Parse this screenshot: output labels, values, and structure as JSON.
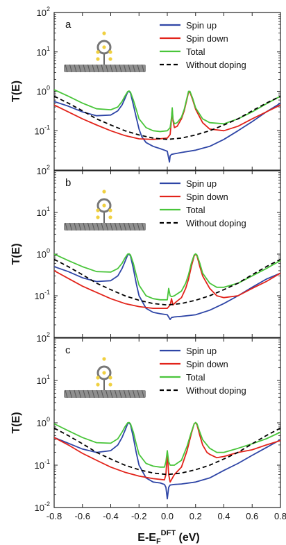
{
  "figure": {
    "xlabel_main": "E-E",
    "xlabel_sub": "F",
    "xlabel_sup": "DFT",
    "xlabel_unit": " (eV)",
    "ylabel": "T(E)",
    "x_ticks": [
      "-0.8",
      "-0.6",
      "-0.4",
      "-0.2",
      "0.0",
      "0.2",
      "0.4",
      "0.6",
      "0.8"
    ],
    "y_tick_base": "10",
    "y_tick_exponents": [
      "2",
      "1",
      "0",
      "-1",
      "-2"
    ]
  },
  "colors": {
    "spin_up": "#2e45a6",
    "spin_down": "#e2231a",
    "total": "#49c53a",
    "without_doping": "#000000"
  },
  "chart_data": [
    {
      "type": "line",
      "panel": "a",
      "xlim": [
        -0.8,
        0.8
      ],
      "ylim": [
        0.01,
        100
      ],
      "yscale": "log",
      "legend_position": "top-right",
      "legend": [
        "Spin up",
        "Spin down",
        "Total",
        "Without doping"
      ],
      "series": [
        {
          "name": "Spin up",
          "color": "#2e45a6",
          "x": [
            -0.8,
            -0.7,
            -0.6,
            -0.5,
            -0.4,
            -0.35,
            -0.32,
            -0.3,
            -0.28,
            -0.27,
            -0.26,
            -0.24,
            -0.22,
            -0.2,
            -0.18,
            -0.15,
            -0.1,
            -0.05,
            -0.02,
            0.0,
            0.01,
            0.015,
            0.02,
            0.03,
            0.05,
            0.1,
            0.2,
            0.3,
            0.4,
            0.5,
            0.6,
            0.7,
            0.8
          ],
          "y": [
            0.55,
            0.42,
            0.3,
            0.24,
            0.25,
            0.32,
            0.45,
            0.65,
            0.95,
            1.0,
            0.9,
            0.45,
            0.22,
            0.11,
            0.07,
            0.05,
            0.04,
            0.035,
            0.032,
            0.03,
            0.02,
            0.016,
            0.023,
            0.025,
            0.026,
            0.028,
            0.032,
            0.04,
            0.06,
            0.1,
            0.17,
            0.3,
            0.5
          ]
        },
        {
          "name": "Spin down",
          "color": "#e2231a",
          "x": [
            -0.8,
            -0.7,
            -0.6,
            -0.5,
            -0.4,
            -0.3,
            -0.2,
            -0.1,
            0.0,
            0.02,
            0.03,
            0.035,
            0.04,
            0.05,
            0.07,
            0.1,
            0.12,
            0.14,
            0.15,
            0.16,
            0.18,
            0.2,
            0.25,
            0.3,
            0.4,
            0.5,
            0.6,
            0.7,
            0.8
          ],
          "y": [
            0.45,
            0.3,
            0.2,
            0.14,
            0.1,
            0.075,
            0.062,
            0.06,
            0.065,
            0.08,
            0.2,
            0.35,
            0.18,
            0.12,
            0.13,
            0.2,
            0.32,
            0.65,
            0.95,
            0.95,
            0.6,
            0.35,
            0.16,
            0.11,
            0.1,
            0.13,
            0.2,
            0.3,
            0.45
          ]
        },
        {
          "name": "Total",
          "color": "#49c53a",
          "x": [
            -0.8,
            -0.7,
            -0.6,
            -0.5,
            -0.4,
            -0.35,
            -0.32,
            -0.3,
            -0.28,
            -0.27,
            -0.26,
            -0.24,
            -0.22,
            -0.2,
            -0.15,
            -0.1,
            -0.05,
            0.0,
            0.02,
            0.03,
            0.035,
            0.04,
            0.05,
            0.07,
            0.1,
            0.12,
            0.14,
            0.15,
            0.16,
            0.18,
            0.2,
            0.25,
            0.3,
            0.4,
            0.5,
            0.6,
            0.7,
            0.8
          ],
          "y": [
            1.1,
            0.75,
            0.5,
            0.36,
            0.34,
            0.4,
            0.55,
            0.75,
            0.98,
            1.02,
            0.95,
            0.6,
            0.35,
            0.2,
            0.12,
            0.1,
            0.095,
            0.1,
            0.12,
            0.22,
            0.38,
            0.2,
            0.15,
            0.16,
            0.22,
            0.35,
            0.7,
            1.0,
            1.0,
            0.65,
            0.38,
            0.2,
            0.16,
            0.15,
            0.2,
            0.3,
            0.48,
            0.75
          ]
        },
        {
          "name": "Without doping",
          "color": "#000000",
          "dashed": true,
          "x": [
            -0.8,
            -0.7,
            -0.6,
            -0.5,
            -0.4,
            -0.3,
            -0.2,
            -0.1,
            0.0,
            0.1,
            0.2,
            0.3,
            0.4,
            0.5,
            0.6,
            0.7,
            0.8
          ],
          "y": [
            0.75,
            0.5,
            0.32,
            0.2,
            0.14,
            0.1,
            0.078,
            0.065,
            0.06,
            0.065,
            0.078,
            0.1,
            0.14,
            0.2,
            0.32,
            0.5,
            0.75
          ]
        }
      ]
    },
    {
      "type": "line",
      "panel": "b",
      "xlim": [
        -0.8,
        0.8
      ],
      "ylim": [
        0.01,
        100
      ],
      "yscale": "log",
      "legend_position": "top-right",
      "legend": [
        "Spin up",
        "Spin down",
        "Total",
        "Without doping"
      ],
      "series": [
        {
          "name": "Spin up",
          "color": "#2e45a6",
          "x": [
            -0.8,
            -0.7,
            -0.6,
            -0.5,
            -0.4,
            -0.35,
            -0.32,
            -0.3,
            -0.28,
            -0.27,
            -0.26,
            -0.24,
            -0.22,
            -0.2,
            -0.15,
            -0.1,
            -0.05,
            0.0,
            0.02,
            0.03,
            0.05,
            0.1,
            0.2,
            0.3,
            0.4,
            0.5,
            0.6,
            0.7,
            0.8
          ],
          "y": [
            0.5,
            0.38,
            0.27,
            0.22,
            0.23,
            0.3,
            0.45,
            0.65,
            0.95,
            1.0,
            0.9,
            0.45,
            0.2,
            0.1,
            0.05,
            0.04,
            0.037,
            0.035,
            0.027,
            0.03,
            0.031,
            0.032,
            0.035,
            0.045,
            0.065,
            0.1,
            0.16,
            0.25,
            0.35
          ]
        },
        {
          "name": "Spin down",
          "color": "#e2231a",
          "x": [
            -0.8,
            -0.7,
            -0.6,
            -0.5,
            -0.4,
            -0.3,
            -0.2,
            -0.1,
            0.0,
            0.02,
            0.03,
            0.04,
            0.06,
            0.1,
            0.13,
            0.15,
            0.17,
            0.19,
            0.2,
            0.21,
            0.23,
            0.25,
            0.3,
            0.35,
            0.4,
            0.5,
            0.6,
            0.7,
            0.8
          ],
          "y": [
            0.4,
            0.26,
            0.17,
            0.12,
            0.085,
            0.065,
            0.055,
            0.05,
            0.05,
            0.06,
            0.085,
            0.06,
            0.07,
            0.09,
            0.15,
            0.25,
            0.5,
            0.9,
            1.0,
            0.9,
            0.5,
            0.3,
            0.15,
            0.1,
            0.09,
            0.1,
            0.15,
            0.22,
            0.35
          ]
        },
        {
          "name": "Total",
          "color": "#49c53a",
          "x": [
            -0.8,
            -0.7,
            -0.6,
            -0.5,
            -0.4,
            -0.35,
            -0.32,
            -0.3,
            -0.28,
            -0.27,
            -0.26,
            -0.24,
            -0.22,
            -0.2,
            -0.15,
            -0.1,
            -0.05,
            0.0,
            0.01,
            0.02,
            0.03,
            0.05,
            0.1,
            0.13,
            0.15,
            0.17,
            0.19,
            0.2,
            0.21,
            0.23,
            0.25,
            0.3,
            0.35,
            0.4,
            0.5,
            0.6,
            0.7,
            0.8
          ],
          "y": [
            1.0,
            0.7,
            0.5,
            0.38,
            0.37,
            0.45,
            0.6,
            0.8,
            1.0,
            1.02,
            0.95,
            0.6,
            0.32,
            0.18,
            0.1,
            0.085,
            0.08,
            0.08,
            0.15,
            0.1,
            0.095,
            0.1,
            0.13,
            0.2,
            0.32,
            0.6,
            0.95,
            1.02,
            0.95,
            0.6,
            0.35,
            0.2,
            0.16,
            0.16,
            0.2,
            0.3,
            0.45,
            0.7
          ]
        },
        {
          "name": "Without doping",
          "color": "#000000",
          "dashed": true,
          "x": [
            -0.8,
            -0.7,
            -0.6,
            -0.5,
            -0.4,
            -0.3,
            -0.2,
            -0.1,
            0.0,
            0.1,
            0.2,
            0.3,
            0.4,
            0.5,
            0.6,
            0.7,
            0.8
          ],
          "y": [
            0.75,
            0.5,
            0.32,
            0.2,
            0.14,
            0.1,
            0.078,
            0.065,
            0.06,
            0.065,
            0.078,
            0.1,
            0.14,
            0.2,
            0.32,
            0.5,
            0.75
          ]
        }
      ]
    },
    {
      "type": "line",
      "panel": "c",
      "xlim": [
        -0.8,
        0.8
      ],
      "ylim": [
        0.01,
        100
      ],
      "yscale": "log",
      "legend_position": "top-right",
      "legend": [
        "Spin up",
        "Spin down",
        "Total",
        "Without doping"
      ],
      "series": [
        {
          "name": "Spin up",
          "color": "#2e45a6",
          "x": [
            -0.8,
            -0.7,
            -0.6,
            -0.5,
            -0.4,
            -0.35,
            -0.32,
            -0.3,
            -0.28,
            -0.27,
            -0.26,
            -0.24,
            -0.22,
            -0.2,
            -0.15,
            -0.1,
            -0.05,
            -0.02,
            -0.01,
            0.0,
            0.01,
            0.02,
            0.05,
            0.1,
            0.2,
            0.3,
            0.4,
            0.5,
            0.6,
            0.7,
            0.8
          ],
          "y": [
            0.45,
            0.33,
            0.24,
            0.2,
            0.22,
            0.3,
            0.45,
            0.65,
            0.95,
            1.0,
            0.9,
            0.45,
            0.2,
            0.1,
            0.05,
            0.04,
            0.038,
            0.035,
            0.03,
            0.016,
            0.03,
            0.034,
            0.035,
            0.036,
            0.04,
            0.05,
            0.075,
            0.11,
            0.17,
            0.26,
            0.4
          ]
        },
        {
          "name": "Spin down",
          "color": "#e2231a",
          "x": [
            -0.8,
            -0.7,
            -0.6,
            -0.5,
            -0.4,
            -0.3,
            -0.2,
            -0.1,
            -0.02,
            -0.01,
            0.0,
            0.01,
            0.02,
            0.05,
            0.1,
            0.14,
            0.17,
            0.19,
            0.2,
            0.21,
            0.23,
            0.25,
            0.28,
            0.3,
            0.35,
            0.4,
            0.5,
            0.6,
            0.7,
            0.8
          ],
          "y": [
            0.45,
            0.3,
            0.19,
            0.13,
            0.09,
            0.068,
            0.055,
            0.048,
            0.045,
            0.06,
            0.2,
            0.06,
            0.04,
            0.06,
            0.09,
            0.22,
            0.55,
            0.95,
            1.0,
            0.9,
            0.5,
            0.3,
            0.2,
            0.18,
            0.15,
            0.16,
            0.2,
            0.23,
            0.3,
            0.38
          ]
        },
        {
          "name": "Total",
          "color": "#49c53a",
          "x": [
            -0.8,
            -0.7,
            -0.6,
            -0.5,
            -0.4,
            -0.35,
            -0.32,
            -0.3,
            -0.28,
            -0.27,
            -0.26,
            -0.24,
            -0.22,
            -0.2,
            -0.15,
            -0.1,
            -0.05,
            -0.02,
            -0.01,
            0.0,
            0.01,
            0.02,
            0.05,
            0.1,
            0.14,
            0.17,
            0.19,
            0.2,
            0.21,
            0.23,
            0.25,
            0.3,
            0.35,
            0.4,
            0.5,
            0.6,
            0.7,
            0.8
          ],
          "y": [
            0.95,
            0.65,
            0.45,
            0.34,
            0.33,
            0.42,
            0.6,
            0.8,
            1.0,
            1.02,
            0.95,
            0.6,
            0.32,
            0.18,
            0.11,
            0.095,
            0.09,
            0.09,
            0.12,
            0.22,
            0.12,
            0.1,
            0.1,
            0.13,
            0.28,
            0.6,
            0.95,
            1.02,
            0.95,
            0.6,
            0.4,
            0.25,
            0.2,
            0.2,
            0.25,
            0.32,
            0.42,
            0.6
          ]
        },
        {
          "name": "Without doping",
          "color": "#000000",
          "dashed": true,
          "x": [
            -0.8,
            -0.7,
            -0.6,
            -0.5,
            -0.4,
            -0.3,
            -0.2,
            -0.1,
            0.0,
            0.1,
            0.2,
            0.3,
            0.4,
            0.5,
            0.6,
            0.7,
            0.8
          ],
          "y": [
            0.75,
            0.5,
            0.32,
            0.2,
            0.14,
            0.1,
            0.078,
            0.065,
            0.06,
            0.065,
            0.078,
            0.1,
            0.14,
            0.2,
            0.32,
            0.5,
            0.75
          ]
        }
      ]
    }
  ]
}
